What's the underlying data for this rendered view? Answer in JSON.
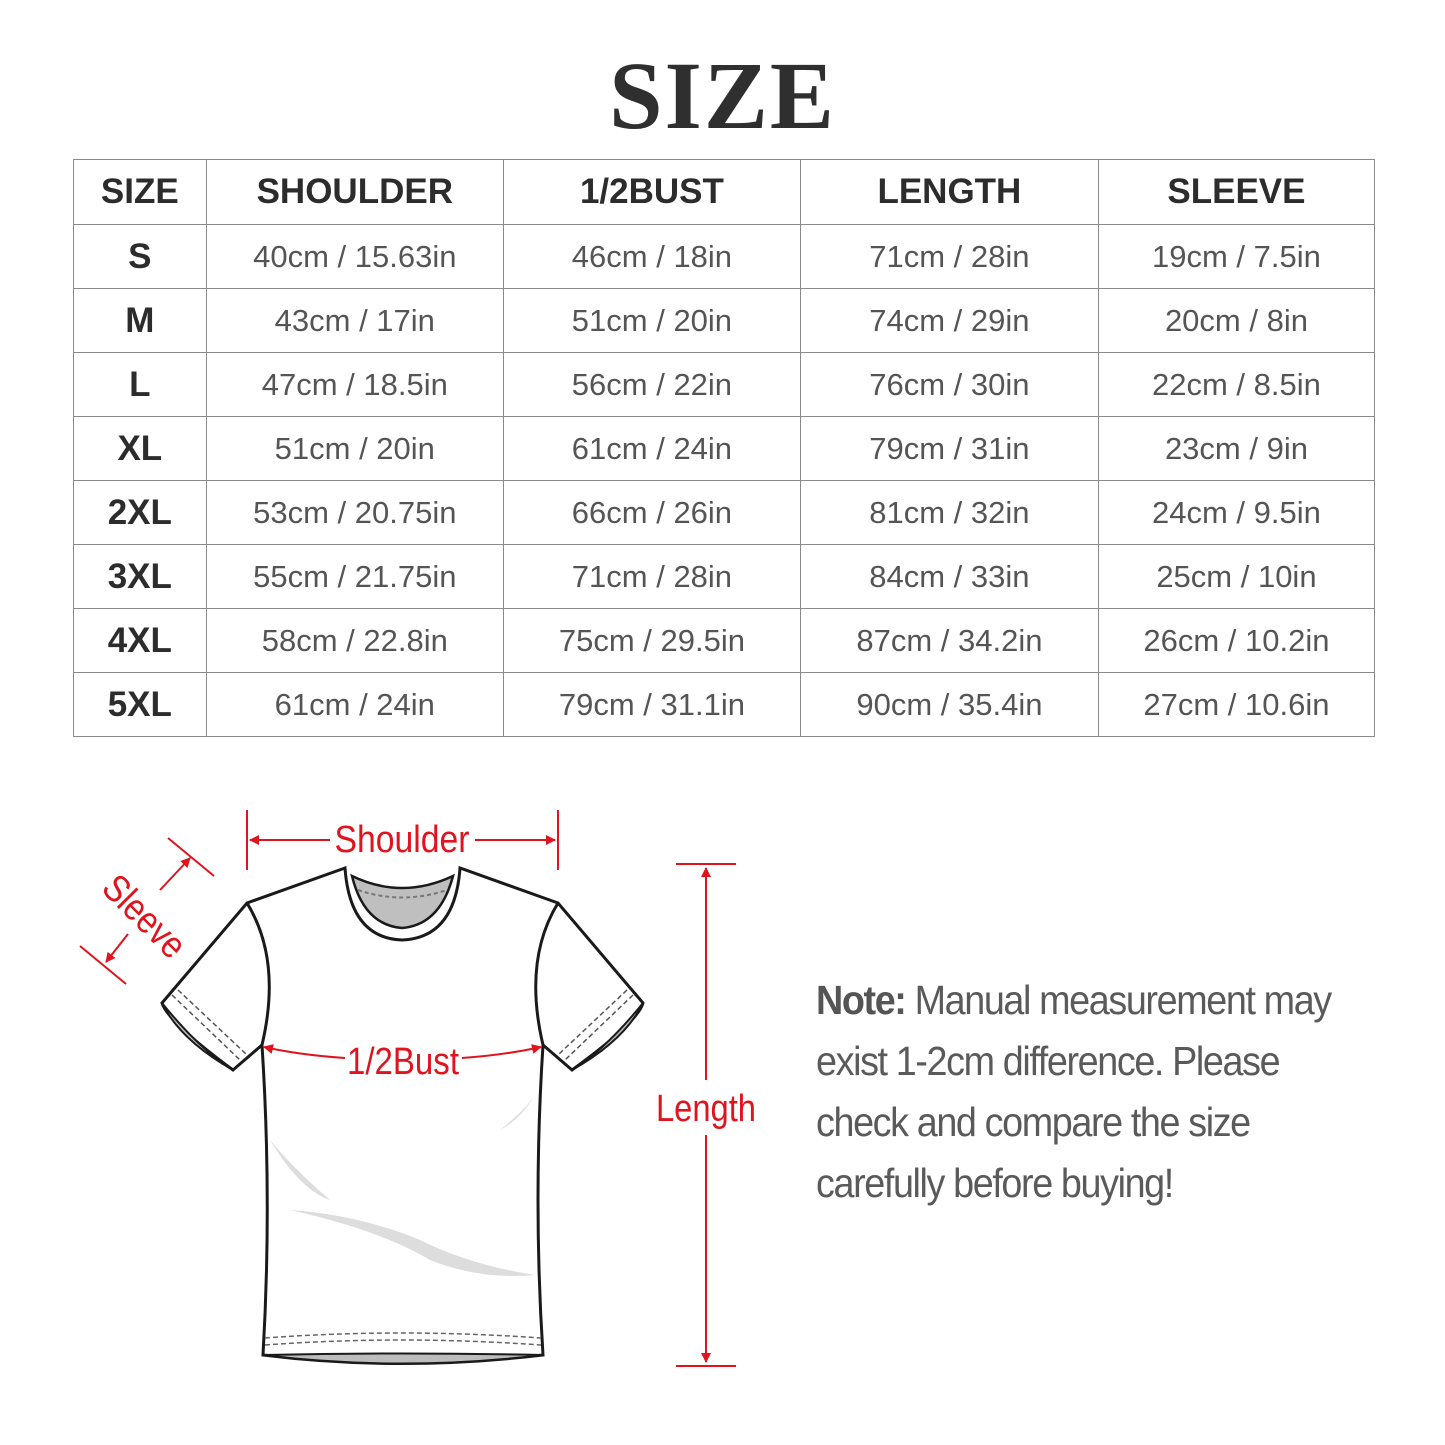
{
  "title": "SIZE",
  "table": {
    "headers": [
      "SIZE",
      "SHOULDER",
      "1/2BUST",
      "LENGTH",
      "SLEEVE"
    ],
    "rows": [
      [
        "S",
        "40cm / 15.63in",
        "46cm / 18in",
        "71cm / 28in",
        "19cm / 7.5in"
      ],
      [
        "M",
        "43cm / 17in",
        "51cm / 20in",
        "74cm / 29in",
        "20cm / 8in"
      ],
      [
        "L",
        "47cm / 18.5in",
        "56cm / 22in",
        "76cm / 30in",
        "22cm / 8.5in"
      ],
      [
        "XL",
        "51cm / 20in",
        "61cm / 24in",
        "79cm / 31in",
        "23cm / 9in"
      ],
      [
        "2XL",
        "53cm / 20.75in",
        "66cm / 26in",
        "81cm / 32in",
        "24cm / 9.5in"
      ],
      [
        "3XL",
        "55cm / 21.75in",
        "71cm / 28in",
        "84cm / 33in",
        "25cm / 10in"
      ],
      [
        "4XL",
        "58cm / 22.8in",
        "75cm / 29.5in",
        "87cm / 34.2in",
        "26cm / 10.2in"
      ],
      [
        "5XL",
        "61cm / 24in",
        "79cm / 31.1in",
        "90cm / 35.4in",
        "27cm / 10.6in"
      ]
    ]
  },
  "diagram": {
    "shoulder_label": "Shoulder",
    "sleeve_label": "Sleeve",
    "bust_label": "1/2Bust",
    "length_label": "Length",
    "accent_color": "#e0141e"
  },
  "note": {
    "label": "Note:",
    "text": " Manual measurement may exist 1-2cm difference. Please check and compare the size carefully before buying!"
  }
}
